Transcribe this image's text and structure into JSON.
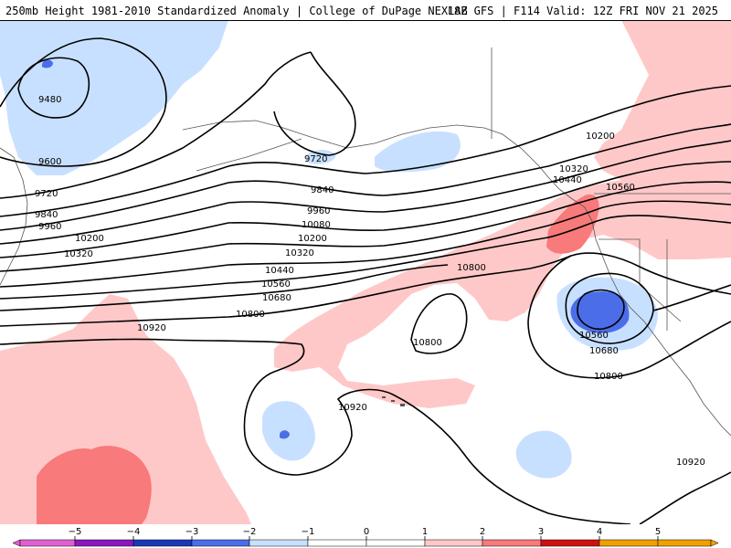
{
  "header": {
    "title": "250mb Height 1981-2010 Standardized Anomaly | College of DuPage NEXLAB",
    "run_info": "18Z GFS | F114 Valid: 12Z FRI NOV 21 2025"
  },
  "colors": {
    "neg5": "#e060d0",
    "neg4": "#8a18c0",
    "neg3": "#1a38b8",
    "neg2": "#4b6ee8",
    "neg1": "#c8e0ff",
    "zero": "#ffffff",
    "pos1": "#ffc8c8",
    "pos2": "#f87a7a",
    "pos3": "#d01010",
    "pos4": "#f0a000"
  },
  "contour_labels": [
    {
      "id": "c9480",
      "text": "9480"
    },
    {
      "id": "c9600",
      "text": "9600"
    },
    {
      "id": "c9720a",
      "text": "9720"
    },
    {
      "id": "c9720b",
      "text": "9720"
    },
    {
      "id": "c9840a",
      "text": "9840"
    },
    {
      "id": "c9840b",
      "text": "9840"
    },
    {
      "id": "c9960a",
      "text": "9960"
    },
    {
      "id": "c9960b",
      "text": "9960"
    },
    {
      "id": "c10080",
      "text": "10080"
    },
    {
      "id": "c10200a",
      "text": "10200"
    },
    {
      "id": "c10200b",
      "text": "10200"
    },
    {
      "id": "c10200c",
      "text": "10200"
    },
    {
      "id": "c10320a",
      "text": "10320"
    },
    {
      "id": "c10320b",
      "text": "10320"
    },
    {
      "id": "c10320c",
      "text": "10320"
    },
    {
      "id": "c10440a",
      "text": "10440"
    },
    {
      "id": "c10440b",
      "text": "10440"
    },
    {
      "id": "c10560a",
      "text": "10560"
    },
    {
      "id": "c10560b",
      "text": "10560"
    },
    {
      "id": "c10560c",
      "text": "10560"
    },
    {
      "id": "c10680a",
      "text": "10680"
    },
    {
      "id": "c10680b",
      "text": "10680"
    },
    {
      "id": "c10800a",
      "text": "10800"
    },
    {
      "id": "c10800b",
      "text": "10800"
    },
    {
      "id": "c10800c",
      "text": "10800"
    },
    {
      "id": "c10800d",
      "text": "10800"
    },
    {
      "id": "c10920a",
      "text": "10920"
    },
    {
      "id": "c10920b",
      "text": "10920"
    },
    {
      "id": "c10920c",
      "text": "10920"
    }
  ],
  "colorbar": {
    "labels": [
      "−5",
      "−4",
      "−3",
      "−2",
      "−1",
      "0",
      "1",
      "2",
      "3",
      "4",
      "5"
    ]
  }
}
